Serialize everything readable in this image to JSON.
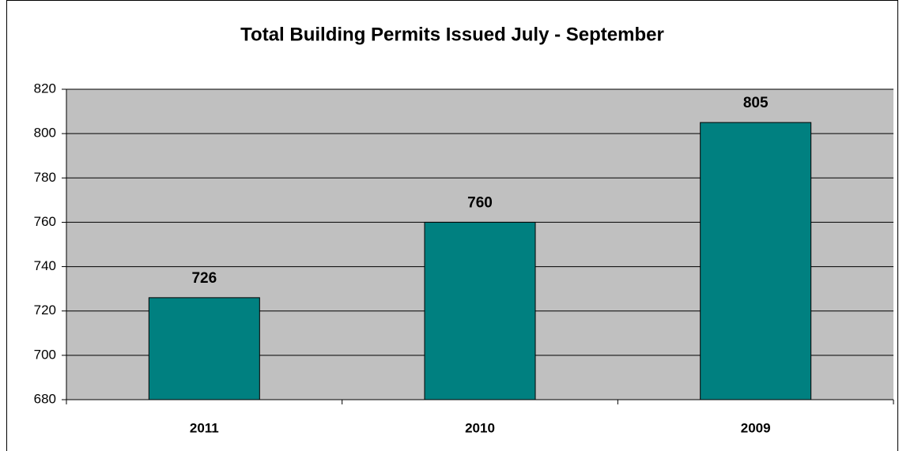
{
  "chart_data": {
    "type": "bar",
    "title": "Total Building Permits Issued July - September",
    "categories": [
      "2011",
      "2010",
      "2009"
    ],
    "values": [
      726,
      760,
      805
    ],
    "color": "#008080",
    "ylim": [
      680,
      820
    ],
    "yticks": [
      680,
      700,
      720,
      740,
      760,
      780,
      800,
      820
    ],
    "grid": true
  }
}
